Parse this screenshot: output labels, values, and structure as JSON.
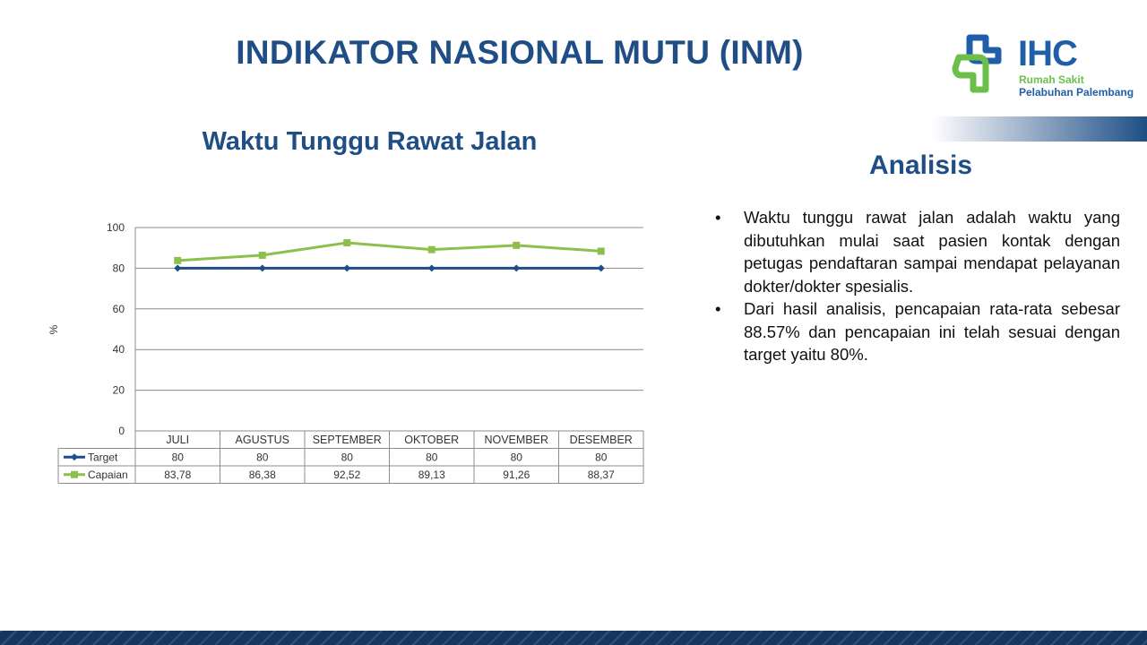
{
  "slide": {
    "title": "INDIKATOR NASIONAL MUTU (INM)",
    "accent_color": "#1f4e86"
  },
  "logo": {
    "word": "IHC",
    "line1": "Rumah Sakit",
    "line2": "Pelabuhan Palembang",
    "colors": {
      "blue": "#1f5fa8",
      "green": "#6cc04a"
    }
  },
  "chart_title": "Waktu Tunggu Rawat Jalan",
  "chart_data": {
    "type": "line",
    "categories": [
      "JULI",
      "AGUSTUS",
      "SEPTEMBER",
      "OKTOBER",
      "NOVEMBER",
      "DESEMBER"
    ],
    "series": [
      {
        "name": "Target",
        "values": [
          80,
          80,
          80,
          80,
          80,
          80
        ],
        "labels": [
          "80",
          "80",
          "80",
          "80",
          "80",
          "80"
        ],
        "color": "#1f4e86",
        "marker": "diamond"
      },
      {
        "name": "Capaian",
        "values": [
          83.78,
          86.38,
          92.52,
          89.13,
          91.26,
          88.37
        ],
        "labels": [
          "83,78",
          "86,38",
          "92,52",
          "89,13",
          "91,26",
          "88,37"
        ],
        "color": "#8cc04b",
        "marker": "square"
      }
    ],
    "ylabel": "%",
    "ylim": [
      0,
      100
    ],
    "yticks": [
      0,
      20,
      40,
      60,
      80,
      100
    ],
    "grid": true,
    "legend": "data-table"
  },
  "analysis": {
    "title": "Analisis",
    "bullet": "•",
    "items": [
      "Waktu tunggu rawat jalan adalah waktu yang dibutuhkan mulai saat pasien kontak dengan petugas pendaftaran sampai mendapat pelayanan dokter/dokter spesialis.",
      "Dari hasil analisis, pencapaian rata-rata sebesar 88.57% dan pencapaian ini telah sesuai dengan target yaitu 80%."
    ]
  }
}
